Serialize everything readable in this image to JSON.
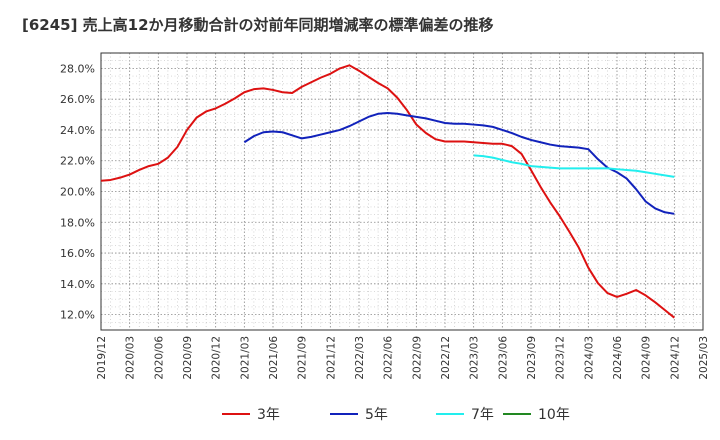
{
  "chart_data": {
    "type": "line",
    "title": "[6245]  売上高12か月移動合計の対前年同期増減率の標準偏差の推移",
    "x_ticks": [
      "2019/12",
      "2020/03",
      "2020/06",
      "2020/09",
      "2020/12",
      "2021/03",
      "2021/06",
      "2021/09",
      "2021/12",
      "2022/03",
      "2022/06",
      "2022/09",
      "2022/12",
      "2023/03",
      "2023/06",
      "2023/09",
      "2023/12",
      "2024/03",
      "2024/06",
      "2024/09",
      "2024/12",
      "2025/03"
    ],
    "ylim": [
      11.0,
      29.0
    ],
    "y_ticks": [
      12.0,
      14.0,
      16.0,
      18.0,
      20.0,
      22.0,
      24.0,
      26.0,
      28.0
    ],
    "y_tick_labels": [
      "12.0%",
      "14.0%",
      "16.0%",
      "18.0%",
      "20.0%",
      "22.0%",
      "24.0%",
      "26.0%",
      "28.0%"
    ],
    "grid": true,
    "legend_position": "bottom",
    "series": [
      {
        "name": "3年",
        "color": "#dd1111",
        "points": [
          [
            "2019/12",
            20.7
          ],
          [
            "2020/01",
            20.75
          ],
          [
            "2020/02",
            20.9
          ],
          [
            "2020/03",
            21.1
          ],
          [
            "2020/04",
            21.4
          ],
          [
            "2020/05",
            21.65
          ],
          [
            "2020/06",
            21.8
          ],
          [
            "2020/07",
            22.2
          ],
          [
            "2020/08",
            22.9
          ],
          [
            "2020/09",
            24.0
          ],
          [
            "2020/10",
            24.8
          ],
          [
            "2020/11",
            25.2
          ],
          [
            "2020/12",
            25.4
          ],
          [
            "2021/01",
            25.7
          ],
          [
            "2021/02",
            26.05
          ],
          [
            "2021/03",
            26.45
          ],
          [
            "2021/04",
            26.65
          ],
          [
            "2021/05",
            26.7
          ],
          [
            "2021/06",
            26.6
          ],
          [
            "2021/07",
            26.45
          ],
          [
            "2021/08",
            26.4
          ],
          [
            "2021/09",
            26.8
          ],
          [
            "2021/10",
            27.1
          ],
          [
            "2021/11",
            27.4
          ],
          [
            "2021/12",
            27.65
          ],
          [
            "2022/01",
            28.0
          ],
          [
            "2022/02",
            28.2
          ],
          [
            "2022/03",
            27.85
          ],
          [
            "2022/04",
            27.45
          ],
          [
            "2022/05",
            27.05
          ],
          [
            "2022/06",
            26.7
          ],
          [
            "2022/07",
            26.1
          ],
          [
            "2022/08",
            25.3
          ],
          [
            "2022/09",
            24.35
          ],
          [
            "2022/10",
            23.8
          ],
          [
            "2022/11",
            23.4
          ],
          [
            "2022/12",
            23.25
          ],
          [
            "2023/01",
            23.25
          ],
          [
            "2023/02",
            23.25
          ],
          [
            "2023/03",
            23.2
          ],
          [
            "2023/04",
            23.15
          ],
          [
            "2023/05",
            23.1
          ],
          [
            "2023/06",
            23.1
          ],
          [
            "2023/07",
            22.95
          ],
          [
            "2023/08",
            22.45
          ],
          [
            "2023/09",
            21.4
          ],
          [
            "2023/10",
            20.3
          ],
          [
            "2023/11",
            19.3
          ],
          [
            "2023/12",
            18.4
          ],
          [
            "2024/01",
            17.4
          ],
          [
            "2024/02",
            16.35
          ],
          [
            "2024/03",
            15.05
          ],
          [
            "2024/04",
            14.05
          ],
          [
            "2024/05",
            13.4
          ],
          [
            "2024/06",
            13.15
          ],
          [
            "2024/07",
            13.35
          ],
          [
            "2024/08",
            13.6
          ],
          [
            "2024/09",
            13.25
          ],
          [
            "2024/10",
            12.8
          ],
          [
            "2024/11",
            12.3
          ],
          [
            "2024/12",
            11.8
          ]
        ]
      },
      {
        "name": "5年",
        "color": "#1122bb",
        "points": [
          [
            "2021/03",
            23.2
          ],
          [
            "2021/04",
            23.6
          ],
          [
            "2021/05",
            23.85
          ],
          [
            "2021/06",
            23.9
          ],
          [
            "2021/07",
            23.85
          ],
          [
            "2021/08",
            23.65
          ],
          [
            "2021/09",
            23.45
          ],
          [
            "2021/10",
            23.55
          ],
          [
            "2021/11",
            23.7
          ],
          [
            "2021/12",
            23.85
          ],
          [
            "2022/01",
            24.0
          ],
          [
            "2022/02",
            24.25
          ],
          [
            "2022/03",
            24.55
          ],
          [
            "2022/04",
            24.85
          ],
          [
            "2022/05",
            25.05
          ],
          [
            "2022/06",
            25.1
          ],
          [
            "2022/07",
            25.05
          ],
          [
            "2022/08",
            24.95
          ],
          [
            "2022/09",
            24.85
          ],
          [
            "2022/10",
            24.75
          ],
          [
            "2022/11",
            24.6
          ],
          [
            "2022/12",
            24.45
          ],
          [
            "2023/01",
            24.4
          ],
          [
            "2023/02",
            24.4
          ],
          [
            "2023/03",
            24.35
          ],
          [
            "2023/04",
            24.3
          ],
          [
            "2023/05",
            24.2
          ],
          [
            "2023/06",
            24.0
          ],
          [
            "2023/07",
            23.8
          ],
          [
            "2023/08",
            23.55
          ],
          [
            "2023/09",
            23.35
          ],
          [
            "2023/10",
            23.2
          ],
          [
            "2023/11",
            23.05
          ],
          [
            "2023/12",
            22.95
          ],
          [
            "2024/01",
            22.9
          ],
          [
            "2024/02",
            22.85
          ],
          [
            "2024/03",
            22.75
          ],
          [
            "2024/04",
            22.1
          ],
          [
            "2024/05",
            21.55
          ],
          [
            "2024/06",
            21.25
          ],
          [
            "2024/07",
            20.85
          ],
          [
            "2024/08",
            20.15
          ],
          [
            "2024/09",
            19.35
          ],
          [
            "2024/10",
            18.9
          ],
          [
            "2024/11",
            18.65
          ],
          [
            "2024/12",
            18.55
          ]
        ]
      },
      {
        "name": "7年",
        "color": "#22eeee",
        "points": [
          [
            "2023/03",
            22.35
          ],
          [
            "2023/04",
            22.3
          ],
          [
            "2023/05",
            22.2
          ],
          [
            "2023/06",
            22.05
          ],
          [
            "2023/07",
            21.9
          ],
          [
            "2023/08",
            21.8
          ],
          [
            "2023/09",
            21.65
          ],
          [
            "2023/10",
            21.6
          ],
          [
            "2023/11",
            21.55
          ],
          [
            "2023/12",
            21.5
          ],
          [
            "2024/01",
            21.5
          ],
          [
            "2024/02",
            21.5
          ],
          [
            "2024/03",
            21.5
          ],
          [
            "2024/04",
            21.5
          ],
          [
            "2024/05",
            21.5
          ],
          [
            "2024/06",
            21.45
          ],
          [
            "2024/07",
            21.4
          ],
          [
            "2024/08",
            21.35
          ],
          [
            "2024/09",
            21.25
          ],
          [
            "2024/10",
            21.15
          ],
          [
            "2024/11",
            21.05
          ],
          [
            "2024/12",
            20.95
          ]
        ]
      },
      {
        "name": "10年",
        "color": "#228822",
        "points": []
      }
    ]
  }
}
